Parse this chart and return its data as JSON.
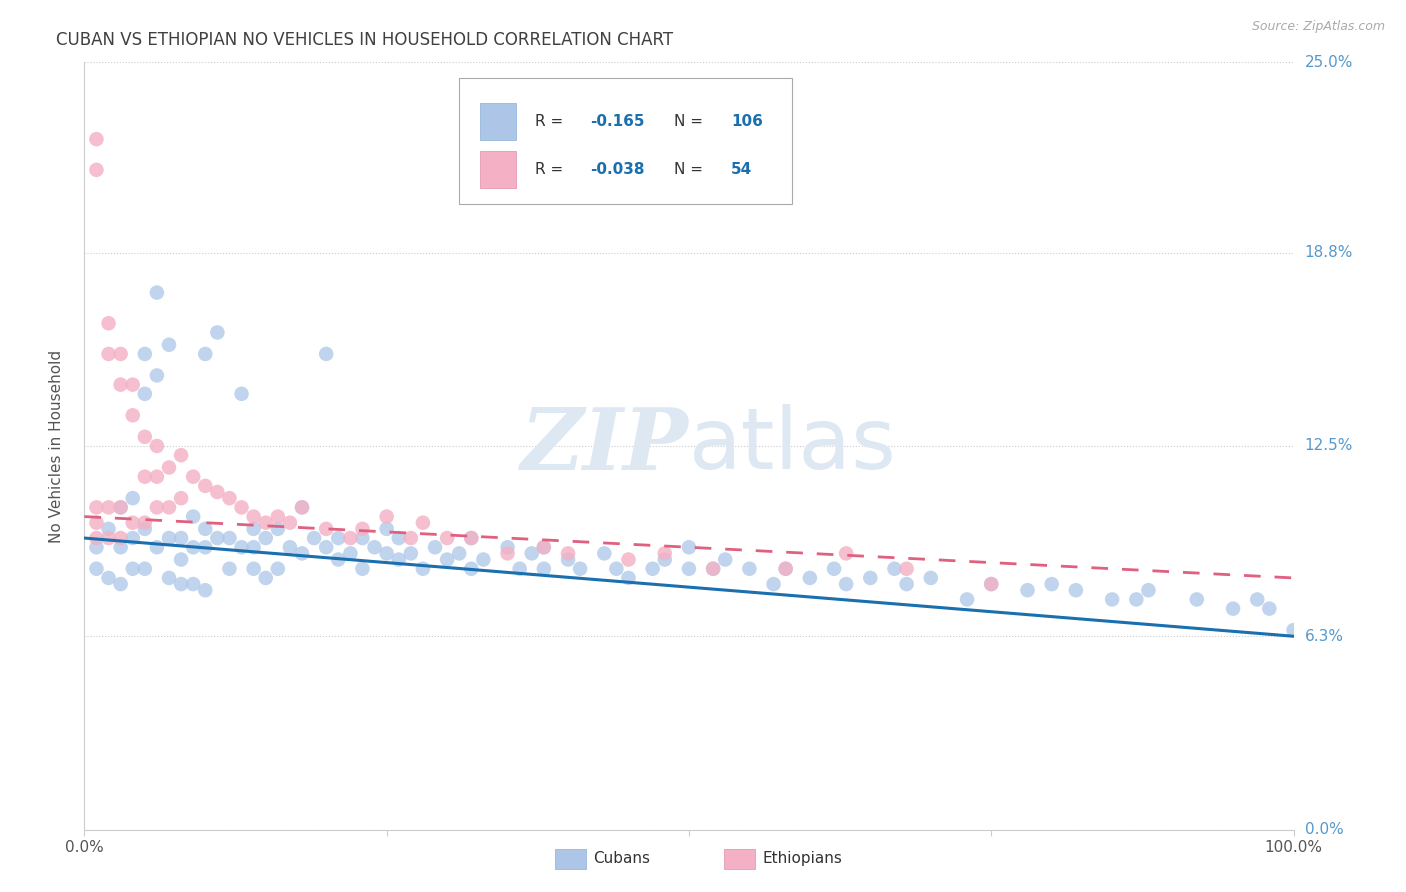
{
  "title": "CUBAN VS ETHIOPIAN NO VEHICLES IN HOUSEHOLD CORRELATION CHART",
  "source": "Source: ZipAtlas.com",
  "ylabel": "No Vehicles in Household",
  "xlim": [
    0,
    100
  ],
  "ylim": [
    0,
    25
  ],
  "ytick_labels": [
    "0.0%",
    "6.3%",
    "12.5%",
    "18.8%",
    "25.0%"
  ],
  "ytick_values": [
    0,
    6.3,
    12.5,
    18.8,
    25.0
  ],
  "cuban_color": "#adc6e8",
  "ethiopian_color": "#f4b0c4",
  "cuban_line_color": "#1a6faf",
  "ethiopian_line_color": "#e06080",
  "cuban_R": "-0.165",
  "cuban_N": "106",
  "ethiopian_R": "-0.038",
  "ethiopian_N": "54",
  "background_color": "#ffffff",
  "grid_color": "#cccccc",
  "title_color": "#404040",
  "right_label_color": "#5599cc",
  "watermark_color": "#dde8f3",
  "cubans_x": [
    1,
    1,
    2,
    2,
    3,
    3,
    3,
    4,
    4,
    4,
    5,
    5,
    5,
    5,
    6,
    6,
    6,
    7,
    7,
    7,
    8,
    8,
    8,
    9,
    9,
    9,
    10,
    10,
    10,
    10,
    11,
    11,
    12,
    12,
    13,
    13,
    14,
    14,
    14,
    15,
    15,
    16,
    16,
    17,
    18,
    18,
    19,
    20,
    20,
    21,
    21,
    22,
    23,
    23,
    24,
    25,
    25,
    26,
    26,
    27,
    28,
    29,
    30,
    31,
    32,
    32,
    33,
    35,
    36,
    37,
    38,
    38,
    40,
    41,
    43,
    44,
    45,
    47,
    48,
    50,
    50,
    52,
    53,
    55,
    57,
    58,
    60,
    62,
    63,
    65,
    67,
    68,
    70,
    73,
    75,
    78,
    80,
    82,
    85,
    87,
    88,
    92,
    95,
    97,
    98,
    100
  ],
  "cubans_y": [
    9.2,
    8.5,
    9.8,
    8.2,
    10.5,
    9.2,
    8.0,
    10.8,
    9.5,
    8.5,
    15.5,
    14.2,
    9.8,
    8.5,
    17.5,
    14.8,
    9.2,
    15.8,
    9.5,
    8.2,
    9.5,
    8.8,
    8.0,
    10.2,
    9.2,
    8.0,
    15.5,
    9.8,
    9.2,
    7.8,
    16.2,
    9.5,
    9.5,
    8.5,
    14.2,
    9.2,
    9.8,
    9.2,
    8.5,
    9.5,
    8.2,
    9.8,
    8.5,
    9.2,
    10.5,
    9.0,
    9.5,
    15.5,
    9.2,
    9.5,
    8.8,
    9.0,
    9.5,
    8.5,
    9.2,
    9.8,
    9.0,
    9.5,
    8.8,
    9.0,
    8.5,
    9.2,
    8.8,
    9.0,
    9.5,
    8.5,
    8.8,
    9.2,
    8.5,
    9.0,
    9.2,
    8.5,
    8.8,
    8.5,
    9.0,
    8.5,
    8.2,
    8.5,
    8.8,
    9.2,
    8.5,
    8.5,
    8.8,
    8.5,
    8.0,
    8.5,
    8.2,
    8.5,
    8.0,
    8.2,
    8.5,
    8.0,
    8.2,
    7.5,
    8.0,
    7.8,
    8.0,
    7.8,
    7.5,
    7.5,
    7.8,
    7.5,
    7.2,
    7.5,
    7.2,
    6.5
  ],
  "ethiopians_x": [
    1,
    1,
    1,
    1,
    1,
    2,
    2,
    2,
    2,
    3,
    3,
    3,
    3,
    4,
    4,
    4,
    5,
    5,
    5,
    6,
    6,
    6,
    7,
    7,
    8,
    8,
    9,
    10,
    11,
    12,
    13,
    14,
    15,
    16,
    17,
    18,
    20,
    22,
    23,
    25,
    27,
    28,
    30,
    32,
    35,
    38,
    40,
    45,
    48,
    52,
    58,
    63,
    68,
    75
  ],
  "ethiopians_y": [
    22.5,
    21.5,
    10.5,
    10.0,
    9.5,
    16.5,
    15.5,
    10.5,
    9.5,
    15.5,
    14.5,
    10.5,
    9.5,
    14.5,
    13.5,
    10.0,
    12.8,
    11.5,
    10.0,
    12.5,
    11.5,
    10.5,
    11.8,
    10.5,
    12.2,
    10.8,
    11.5,
    11.2,
    11.0,
    10.8,
    10.5,
    10.2,
    10.0,
    10.2,
    10.0,
    10.5,
    9.8,
    9.5,
    9.8,
    10.2,
    9.5,
    10.0,
    9.5,
    9.5,
    9.0,
    9.2,
    9.0,
    8.8,
    9.0,
    8.5,
    8.5,
    9.0,
    8.5,
    8.0
  ],
  "cuban_line_x0": 0,
  "cuban_line_y0": 9.5,
  "cuban_line_x1": 100,
  "cuban_line_y1": 6.3,
  "eth_line_x0": 0,
  "eth_line_y0": 10.2,
  "eth_line_x1": 100,
  "eth_line_y1": 8.2
}
